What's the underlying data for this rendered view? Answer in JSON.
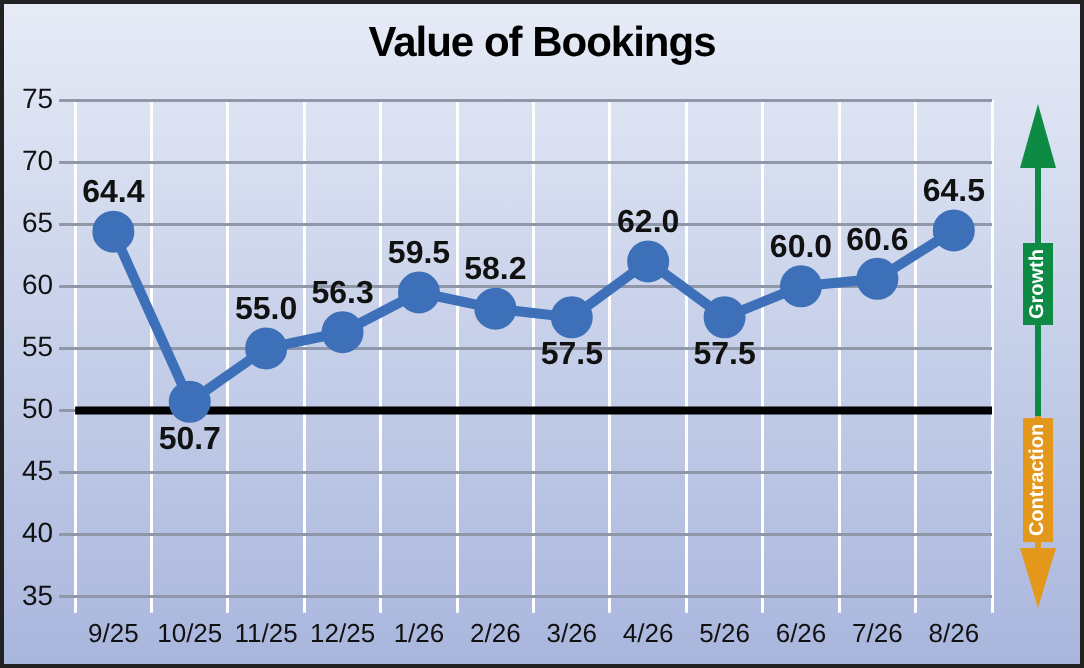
{
  "chart_data": {
    "type": "line",
    "title": "Value of Bookings",
    "categories": [
      "9/25",
      "10/25",
      "11/25",
      "12/25",
      "1/26",
      "2/26",
      "3/26",
      "4/26",
      "5/26",
      "6/26",
      "7/26",
      "8/26"
    ],
    "series": [
      {
        "color": "#3d70b8",
        "values": [
          64.4,
          50.7,
          55.0,
          56.3,
          59.5,
          58.2,
          57.5,
          62.0,
          57.5,
          60.0,
          60.6,
          64.5
        ],
        "value_labels": [
          "64.4",
          "50.7",
          "55.0",
          "56.3",
          "59.5",
          "58.2",
          "57.5",
          "62.0",
          "57.5",
          "60.0",
          "60.6",
          "64.5"
        ]
      }
    ],
    "ylim": [
      35,
      75
    ],
    "yticks": [
      35,
      40,
      45,
      50,
      55,
      60,
      65,
      70,
      75
    ],
    "grid": true,
    "marker": "circle",
    "line_style": "solid",
    "ref_lines": [
      {
        "axis": "y",
        "value": 50,
        "color": "#000000"
      }
    ],
    "annotations": [
      "Growth",
      "Contraction"
    ]
  }
}
